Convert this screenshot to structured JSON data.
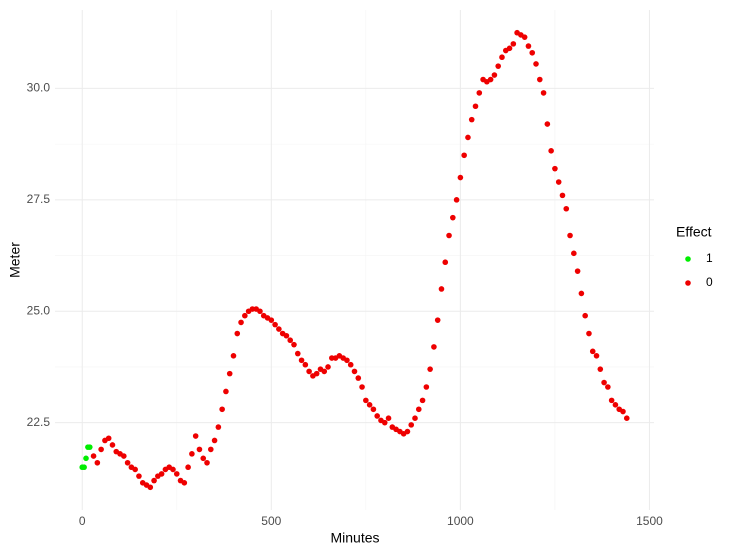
{
  "chart_data": {
    "type": "scatter",
    "x_label": "Minutes",
    "y_label": "Meter",
    "legend_title": "Effect",
    "legend": "right",
    "grid": true,
    "xlim": [
      -72,
      1512
    ],
    "xticks": [
      0,
      500,
      1000,
      1500
    ],
    "ylim": [
      20.54,
      31.76
    ],
    "yticks": [
      22.5,
      {
        "value": 25,
        "label": "25.0"
      },
      27.5,
      {
        "value": 30,
        "label": "30.0"
      }
    ],
    "series": [
      {
        "name": "1",
        "color": "#00ee00",
        "x": [
          0,
          5,
          10,
          15,
          20
        ],
        "values": [
          21.5,
          21.5,
          21.7,
          21.95,
          21.95
        ]
      },
      {
        "name": "0",
        "color": "#ee0000",
        "x": [
          30,
          40,
          50,
          60,
          70,
          80,
          90,
          100,
          110,
          120,
          130,
          140,
          150,
          160,
          170,
          180,
          190,
          200,
          210,
          220,
          230,
          240,
          250,
          260,
          270,
          280,
          290,
          300,
          310,
          320,
          330,
          340,
          350,
          360,
          370,
          380,
          390,
          400,
          410,
          420,
          430,
          440,
          450,
          460,
          470,
          480,
          490,
          500,
          510,
          520,
          530,
          540,
          550,
          560,
          570,
          580,
          590,
          600,
          610,
          620,
          630,
          640,
          650,
          660,
          670,
          680,
          690,
          700,
          710,
          720,
          730,
          740,
          750,
          760,
          770,
          780,
          790,
          800,
          810,
          820,
          830,
          840,
          850,
          860,
          870,
          880,
          890,
          900,
          910,
          920,
          930,
          940,
          950,
          960,
          970,
          980,
          990,
          1000,
          1010,
          1020,
          1030,
          1040,
          1050,
          1060,
          1070,
          1080,
          1090,
          1100,
          1110,
          1120,
          1130,
          1140,
          1150,
          1160,
          1170,
          1180,
          1190,
          1200,
          1210,
          1220,
          1230,
          1240,
          1250,
          1260,
          1270,
          1280,
          1290,
          1300,
          1310,
          1320,
          1330,
          1340,
          1350,
          1360,
          1370,
          1380,
          1390,
          1400,
          1410,
          1420,
          1430,
          1440
        ],
        "values": [
          21.75,
          21.6,
          21.9,
          22.1,
          22.15,
          22.0,
          21.85,
          21.8,
          21.75,
          21.6,
          21.5,
          21.45,
          21.3,
          21.15,
          21.1,
          21.05,
          21.2,
          21.3,
          21.35,
          21.45,
          21.5,
          21.45,
          21.35,
          21.2,
          21.15,
          21.5,
          21.8,
          22.2,
          21.9,
          21.7,
          21.6,
          21.9,
          22.1,
          22.4,
          22.8,
          23.2,
          23.6,
          24.0,
          24.5,
          24.75,
          24.9,
          25.0,
          25.05,
          25.05,
          25.0,
          24.9,
          24.85,
          24.8,
          24.7,
          24.6,
          24.5,
          24.45,
          24.35,
          24.25,
          24.05,
          23.9,
          23.8,
          23.65,
          23.55,
          23.6,
          23.7,
          23.65,
          23.75,
          23.95,
          23.95,
          24.0,
          23.95,
          23.9,
          23.8,
          23.65,
          23.5,
          23.3,
          23.0,
          22.9,
          22.8,
          22.65,
          22.55,
          22.5,
          22.6,
          22.4,
          22.35,
          22.3,
          22.25,
          22.3,
          22.45,
          22.6,
          22.8,
          23.0,
          23.3,
          23.7,
          24.2,
          24.8,
          25.5,
          26.1,
          26.7,
          27.1,
          27.5,
          28.0,
          28.5,
          28.9,
          29.3,
          29.6,
          29.9,
          30.2,
          30.15,
          30.2,
          30.3,
          30.5,
          30.7,
          30.85,
          30.9,
          31.0,
          31.25,
          31.2,
          31.15,
          30.95,
          30.8,
          30.55,
          30.2,
          29.9,
          29.2,
          28.6,
          28.2,
          27.9,
          27.6,
          27.3,
          26.7,
          26.3,
          25.9,
          25.4,
          24.9,
          24.5,
          24.1,
          24.0,
          23.7,
          23.4,
          23.3,
          23.0,
          22.9,
          22.8,
          22.75,
          22.6
        ]
      }
    ]
  }
}
